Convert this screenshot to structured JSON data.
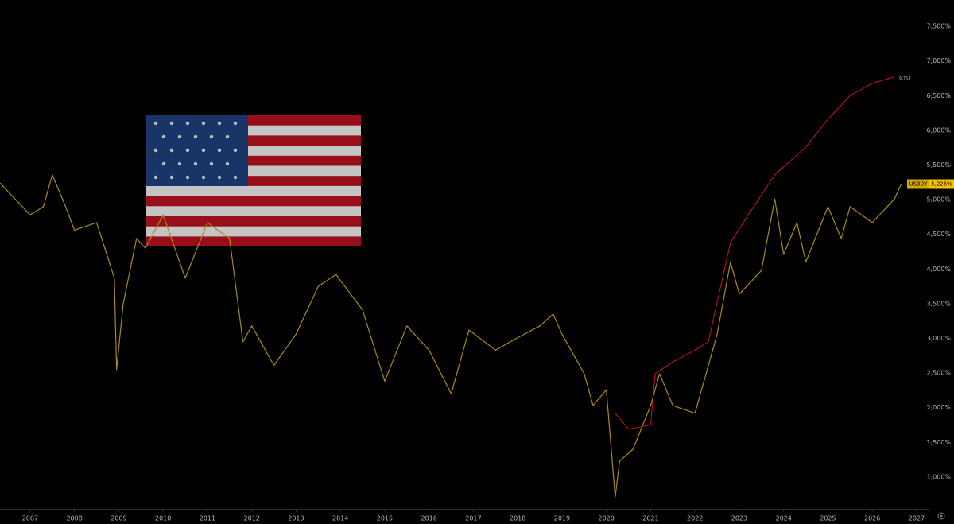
{
  "chart_data": {
    "type": "line",
    "symbol": "US30Y",
    "xlim": [
      2006.32,
      2027.27
    ],
    "ylim": [
      0.54,
      7.88
    ],
    "xticks": [
      2007,
      2008,
      2009,
      2010,
      2011,
      2012,
      2013,
      2014,
      2015,
      2016,
      2017,
      2018,
      2019,
      2020,
      2021,
      2022,
      2023,
      2024,
      2025,
      2026,
      2027
    ],
    "yticks": [
      {
        "value": 1.0,
        "label": "1,000%"
      },
      {
        "value": 1.5,
        "label": "1,500%"
      },
      {
        "value": 2.0,
        "label": "2,000%"
      },
      {
        "value": 2.5,
        "label": "2,500%"
      },
      {
        "value": 3.0,
        "label": "3,000%"
      },
      {
        "value": 3.5,
        "label": "3,500%"
      },
      {
        "value": 4.0,
        "label": "4,000%"
      },
      {
        "value": 4.5,
        "label": "4,500%"
      },
      {
        "value": 5.0,
        "label": "5,000%"
      },
      {
        "value": 5.5,
        "label": "5,500%"
      },
      {
        "value": 6.0,
        "label": "6,000%"
      },
      {
        "value": 6.5,
        "label": "6,500%"
      },
      {
        "value": 7.0,
        "label": "7,000%"
      },
      {
        "value": 7.5,
        "label": "7,500%"
      }
    ],
    "last_price": {
      "value": 5.225,
      "label": "5,225%"
    },
    "red_end_label": {
      "value": 6.753,
      "label": "6,753"
    },
    "series": [
      {
        "name": "US30Y",
        "color": "#a8891c",
        "x": [
          2006.32,
          2007.0,
          2007.3,
          2007.5,
          2007.8,
          2008.0,
          2008.5,
          2008.9,
          2008.95,
          2009.1,
          2009.4,
          2009.6,
          2010.0,
          2010.5,
          2011.0,
          2011.5,
          2011.8,
          2012.0,
          2012.5,
          2013.0,
          2013.5,
          2013.9,
          2014.5,
          2015.0,
          2015.5,
          2016.0,
          2016.5,
          2016.9,
          2017.5,
          2018.0,
          2018.5,
          2018.8,
          2019.0,
          2019.5,
          2019.7,
          2020.0,
          2020.2,
          2020.3,
          2020.6,
          2021.0,
          2021.2,
          2021.5,
          2022.0,
          2022.5,
          2022.8,
          2023.0,
          2023.5,
          2023.8,
          2024.0,
          2024.3,
          2024.5,
          2025.0,
          2025.3,
          2025.5,
          2026.0,
          2026.5,
          2026.65
        ],
        "values": [
          5.24,
          4.78,
          4.9,
          5.36,
          4.9,
          4.56,
          4.67,
          3.87,
          2.55,
          3.5,
          4.44,
          4.3,
          4.78,
          3.87,
          4.67,
          4.44,
          2.95,
          3.18,
          2.61,
          3.06,
          3.75,
          3.92,
          3.41,
          2.38,
          3.18,
          2.83,
          2.2,
          3.12,
          2.83,
          3.01,
          3.18,
          3.35,
          3.06,
          2.49,
          2.03,
          2.26,
          0.71,
          1.23,
          1.4,
          2.03,
          2.49,
          2.03,
          1.92,
          3.06,
          4.1,
          3.64,
          3.98,
          5.01,
          4.21,
          4.67,
          4.1,
          4.9,
          4.44,
          4.9,
          4.67,
          5.01,
          5.22
        ]
      },
      {
        "color": "#c8102e",
        "x": [
          2020.2,
          2020.5,
          2021.0,
          2021.1,
          2021.5,
          2022.0,
          2022.3,
          2022.5,
          2022.8,
          2023.2,
          2023.8,
          2024.5,
          2025.0,
          2025.5,
          2026.0,
          2026.5
        ],
        "values": [
          1.92,
          1.69,
          1.75,
          2.49,
          2.66,
          2.83,
          2.95,
          3.52,
          4.38,
          4.78,
          5.36,
          5.76,
          6.16,
          6.5,
          6.68,
          6.77
        ]
      }
    ]
  }
}
